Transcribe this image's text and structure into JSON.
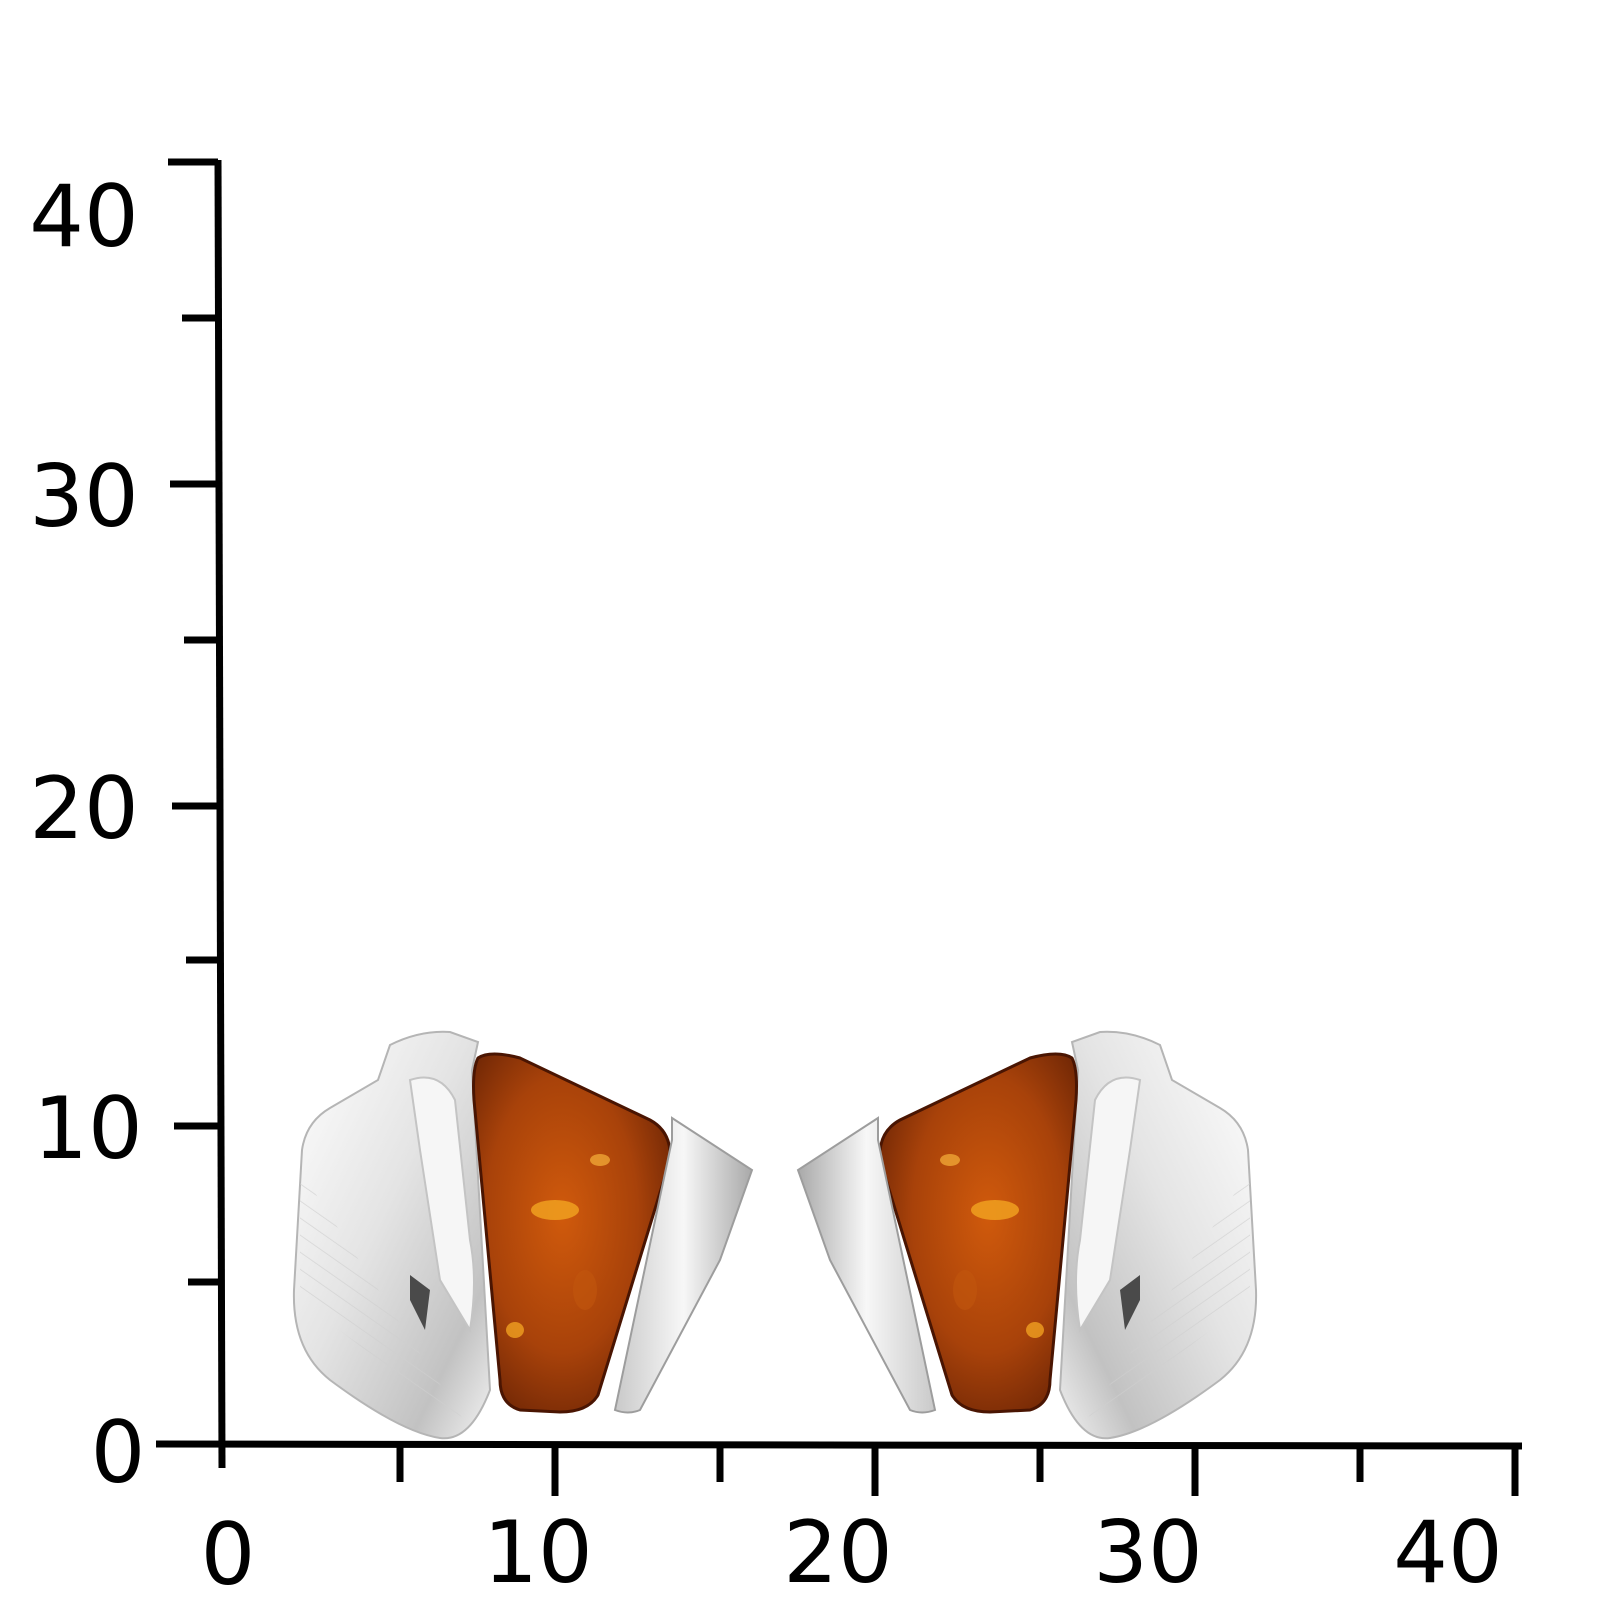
{
  "scale": {
    "y_axis": {
      "ticks": [
        "0",
        "10",
        "20",
        "30",
        "40"
      ]
    },
    "x_axis": {
      "ticks": [
        "0",
        "10",
        "20",
        "30",
        "40"
      ]
    }
  },
  "photo": {
    "subject_icon": "amber-stud-earrings",
    "colors": {
      "amber": "#9a3a06",
      "amber_light": "#e87a10",
      "silver": "#e6e6e6",
      "silver_shadow": "#9a9a9a"
    }
  }
}
